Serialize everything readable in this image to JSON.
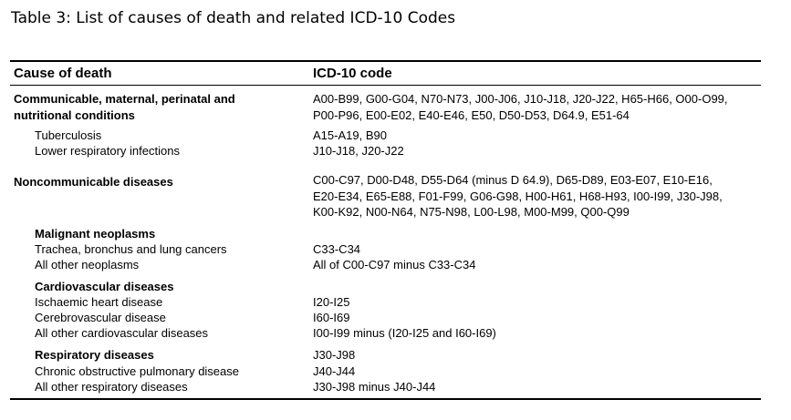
{
  "caption": "Table 3: List of causes of death and related ICD-10 Codes",
  "header": {
    "cause": "Cause of death",
    "code": "ICD-10 code"
  },
  "rows": [
    {
      "cause_lines": [
        "Communicable, maternal, perinatal and",
        "nutritional conditions"
      ],
      "code_lines": [
        "A00-B99, G00-G04, N70-N73, J00-J06, J10-J18, J20-J22, H65-H66, O00-O99,",
        "P00-P96, E00-E02, E40-E46, E50, D50-D53, D64.9, E51-64"
      ]
    },
    {
      "cause": "Tuberculosis",
      "code": "A15-A19, B90"
    },
    {
      "cause": "Lower respiratory infections",
      "code": "J10-J18, J20-J22"
    },
    {
      "cause": "Noncommunicable diseases",
      "code_lines": [
        "C00-C97, D00-D48, D55-D64 (minus D 64.9), D65-D89, E03-E07, E10-E16,",
        "E20-E34, E65-E88, F01-F99, G06-G98, H00-H61, H68-H93, I00-I99, J30-J98,",
        "K00-K92, N00-N64, N75-N98, L00-L98, M00-M99, Q00-Q99"
      ]
    },
    {
      "cause": "Malignant neoplasms"
    },
    {
      "cause": "Trachea, bronchus and lung cancers",
      "code": "C33-C34"
    },
    {
      "cause": "All other neoplasms",
      "code": "All of C00-C97 minus C33-C34"
    },
    {
      "cause": "Cardiovascular diseases"
    },
    {
      "cause": "Ischaemic heart disease",
      "code": "I20-I25"
    },
    {
      "cause": "Cerebrovascular disease",
      "code": "I60-I69"
    },
    {
      "cause": "All other cardiovascular diseases",
      "code": "I00-I99 minus (I20-I25 and I60-I69)"
    },
    {
      "cause": "Respiratory diseases",
      "code": "J30-J98"
    },
    {
      "cause": "Chronic obstructive pulmonary disease",
      "code": "J40-J44"
    },
    {
      "cause": "All other respiratory diseases",
      "code": "J30-J98 minus J40-J44"
    }
  ]
}
